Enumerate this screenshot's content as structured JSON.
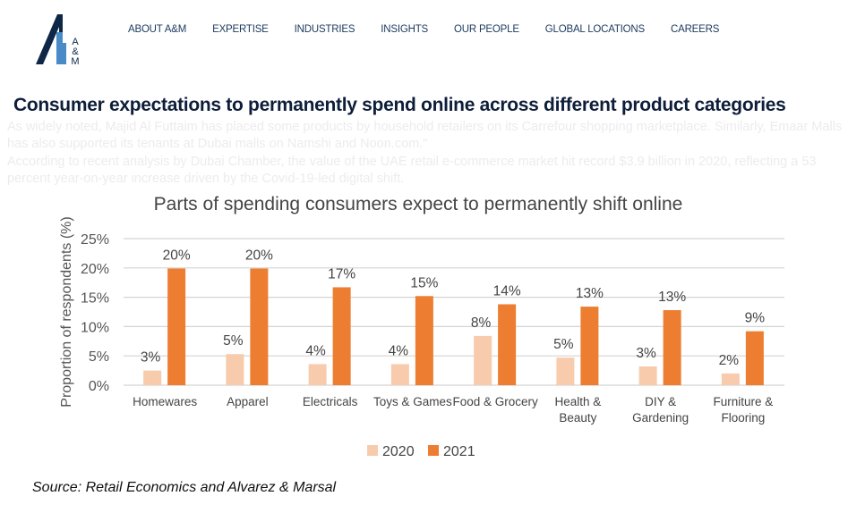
{
  "background_text": {
    "para1": "As widely noted, Majid Al Futtaim has placed some products by household retailers on its Carrefour shopping marketplace. Similarly, Emaar Malls has also supported its tenants at Dubai malls on Namshi and Noon.com.\"",
    "para2": "According to recent analysis by Dubai Chamber, the value of the UAE retail e-commerce market hit record $3.9 billion in 2020, reflecting a 53 percent year-on-year increase driven by the Covid-19-led digital shift."
  },
  "logo": {
    "text": "A&M",
    "colors": {
      "dark": "#0e2747",
      "light": "#4a8bc7"
    }
  },
  "nav": {
    "items": [
      "ABOUT A&M",
      "EXPERTISE",
      "INDUSTRIES",
      "INSIGHTS",
      "OUR PEOPLE",
      "GLOBAL LOCATIONS",
      "CAREERS"
    ]
  },
  "heading": "Consumer expectations to permanently spend online across different product categories",
  "chart_data": {
    "type": "bar",
    "title": "Parts of spending consumers expect to permanently shift  online",
    "xlabel": "",
    "ylabel": "Proportion of respondents (%)",
    "ylim": [
      0,
      25
    ],
    "yticks": [
      "0%",
      "5%",
      "10%",
      "15%",
      "20%",
      "25%"
    ],
    "grid": true,
    "legend": "bottom",
    "categories": [
      "Homewares",
      "Apparel",
      "Electricals",
      "Toys & Games",
      "Food & Grocery",
      "Health & Beauty",
      "DIY & Gardening",
      "Furniture & Flooring"
    ],
    "category_lines": [
      [
        "Homewares"
      ],
      [
        "Apparel"
      ],
      [
        "Electricals"
      ],
      [
        "Toys & Games"
      ],
      [
        "Food & Grocery"
      ],
      [
        "Health &",
        "Beauty"
      ],
      [
        "DIY &",
        "Gardening"
      ],
      [
        "Furniture &",
        "Flooring"
      ]
    ],
    "series": [
      {
        "name": "2020",
        "color": "#f8cbad",
        "values": [
          2.5,
          5.3,
          3.6,
          3.6,
          8.4,
          4.7,
          3.2,
          2.0
        ],
        "labels": [
          "3%",
          "5%",
          "4%",
          "4%",
          "8%",
          "5%",
          "3%",
          "2%"
        ]
      },
      {
        "name": "2021",
        "color": "#ed7d31",
        "values": [
          19.9,
          19.9,
          16.7,
          15.2,
          13.8,
          13.4,
          12.8,
          9.2
        ],
        "labels": [
          "20%",
          "20%",
          "17%",
          "15%",
          "14%",
          "13%",
          "13%",
          "9%"
        ]
      }
    ]
  },
  "source": "Source: Retail Economics and Alvarez & Marsal"
}
